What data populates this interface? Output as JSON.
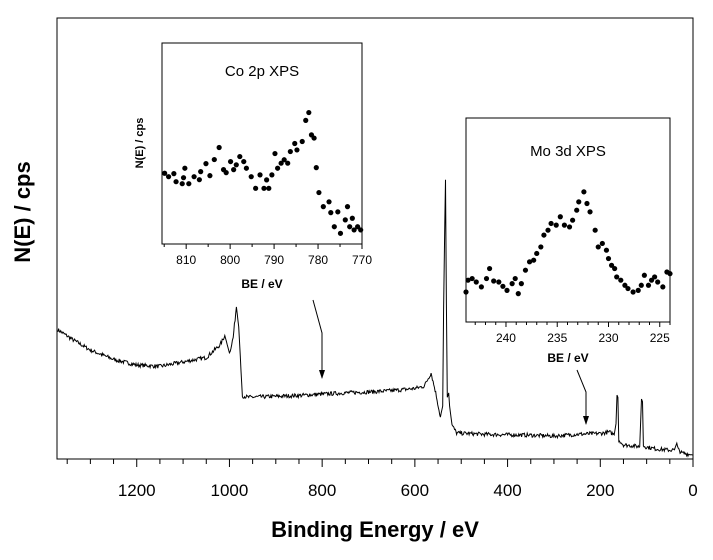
{
  "chart_data": [
    {
      "type": "line",
      "xlabel": "Binding Energy / eV",
      "ylabel": "N(E) / cps",
      "xlim": [
        1372,
        0
      ],
      "x_reversed": true,
      "ylim": [
        0,
        100
      ],
      "y_ticks_shown": false,
      "x_ticks": [
        1200,
        1000,
        800,
        600,
        400,
        200,
        0
      ],
      "grid": false,
      "line_color": "#000000",
      "series": [
        {
          "x": [
            1370,
            1340,
            1300,
            1250,
            1200,
            1150,
            1100,
            1050,
            1020,
            1010,
            1005,
            1000,
            992,
            985,
            980,
            975,
            972,
            960,
            900,
            850,
            800,
            750,
            700,
            650,
            600,
            580,
            565,
            555,
            545,
            540,
            538,
            534,
            532,
            530,
            527,
            525,
            520,
            510,
            450,
            400,
            350,
            300,
            250,
            200,
            180,
            170,
            166,
            164,
            162,
            160,
            150,
            130,
            115,
            111,
            109,
            107,
            100,
            80,
            50,
            40,
            35,
            32,
            25,
            15,
            5,
            0
          ],
          "y": [
            29.3,
            27.2,
            24.7,
            22.6,
            21.3,
            21.0,
            22.0,
            23.0,
            25.9,
            28.0,
            26.0,
            24.0,
            27.5,
            34.5,
            30.0,
            20.0,
            14.3,
            14.0,
            14.2,
            14.4,
            14.7,
            15.0,
            15.2,
            15.5,
            16.0,
            16.5,
            19.5,
            15.0,
            9.5,
            12.0,
            34.0,
            63.3,
            35.0,
            14.0,
            15.0,
            12.0,
            7.7,
            5.9,
            5.6,
            5.5,
            5.4,
            5.2,
            5.6,
            5.8,
            6.1,
            5.5,
            8.0,
            14.5,
            14.0,
            4.3,
            3.2,
            3.0,
            2.8,
            13.6,
            13.0,
            3.0,
            2.7,
            2.3,
            2.0,
            2.1,
            3.6,
            2.2,
            1.4,
            1.2,
            1.0,
            0.9
          ]
        }
      ],
      "annotations": [
        {
          "target": "Co 2p inset",
          "x": 800
        },
        {
          "target": "Mo 3d inset",
          "x": 230
        }
      ]
    },
    {
      "type": "scatter",
      "title": "Co 2p XPS",
      "xlabel": "BE / eV",
      "ylabel": "N(E) / cps",
      "xlim": [
        815.5,
        770
      ],
      "x_reversed": true,
      "ylim": [
        0,
        100
      ],
      "x_ticks": [
        810,
        800,
        790,
        780,
        770
      ],
      "marker_color": "#000000",
      "x": [
        814.9,
        814,
        812.8,
        812.3,
        810.9,
        810.6,
        810.3,
        809.4,
        808.2,
        807,
        806.7,
        805.5,
        804.6,
        803.6,
        802.5,
        801.5,
        800.9,
        799.9,
        799.2,
        798.6,
        797.8,
        796.9,
        796.3,
        795.2,
        794.2,
        793.2,
        792.3,
        791.7,
        791.2,
        790.5,
        789.8,
        789.2,
        788.4,
        787.7,
        786.9,
        786.3,
        785.3,
        784.8,
        783.6,
        782.8,
        782.1,
        781.5,
        780.9,
        780.4,
        779.8,
        778.8,
        777.5,
        777.1,
        776.3,
        775.5,
        774.9,
        773.8,
        773.3,
        772.8,
        772.2,
        771.8,
        771,
        770.3
      ],
      "y": [
        35.2,
        33.5,
        35,
        31,
        30,
        33,
        37.7,
        30,
        33.5,
        32,
        36,
        40,
        34,
        42,
        48,
        37,
        35.5,
        41,
        37,
        39.4,
        43.5,
        41,
        37.7,
        33.5,
        27.7,
        34.4,
        27.7,
        31.9,
        27.7,
        34.4,
        45,
        37.7,
        40.2,
        41.9,
        40.2,
        46,
        50,
        46.8,
        51,
        61.5,
        65.4,
        54.3,
        52.7,
        38,
        25.6,
        18.6,
        21,
        15.6,
        8.6,
        16,
        5.3,
        12,
        18.6,
        8.6,
        12.8,
        7,
        8.6,
        7
      ]
    },
    {
      "type": "scatter",
      "title": "Mo 3d XPS",
      "xlabel": "BE / eV",
      "xlim": [
        243.9,
        224
      ],
      "x_reversed": true,
      "ylim": [
        0,
        100
      ],
      "x_ticks": [
        240,
        235,
        230,
        225
      ],
      "marker_color": "#000000",
      "x": [
        243.9,
        243.7,
        243.3,
        242.9,
        242.4,
        241.9,
        241.6,
        241.2,
        240.7,
        240.3,
        239.9,
        239.4,
        239.1,
        238.8,
        238.5,
        238.1,
        237.7,
        237.3,
        237,
        236.6,
        236.3,
        235.9,
        235.6,
        235.1,
        234.7,
        234.3,
        233.8,
        233.5,
        233.1,
        232.9,
        232.4,
        232.1,
        231.8,
        231.3,
        231,
        230.6,
        230.2,
        230,
        229.7,
        229.4,
        229.2,
        228.8,
        228.4,
        228.1,
        227.6,
        227.1,
        226.8,
        226.5,
        226.1,
        225.8,
        225.5,
        225.2,
        224.7,
        224.3,
        224
      ],
      "y": [
        14.7,
        20.5,
        21.3,
        19.6,
        17.2,
        21.3,
        26.2,
        20.1,
        19.6,
        17.5,
        15.5,
        18.8,
        21.3,
        13.9,
        18.8,
        25.4,
        29.5,
        30.3,
        33.6,
        36.8,
        42.6,
        45,
        48.3,
        47.5,
        51.6,
        47.5,
        46.6,
        49.9,
        54.8,
        58.9,
        63.8,
        58.1,
        54,
        45,
        36.8,
        38.5,
        35.2,
        31.1,
        27.8,
        26.2,
        22.1,
        20.5,
        18,
        16.4,
        14.7,
        15.5,
        18,
        22.9,
        18,
        20.5,
        22.1,
        19.6,
        17.2,
        24.5,
        23.7
      ]
    }
  ]
}
